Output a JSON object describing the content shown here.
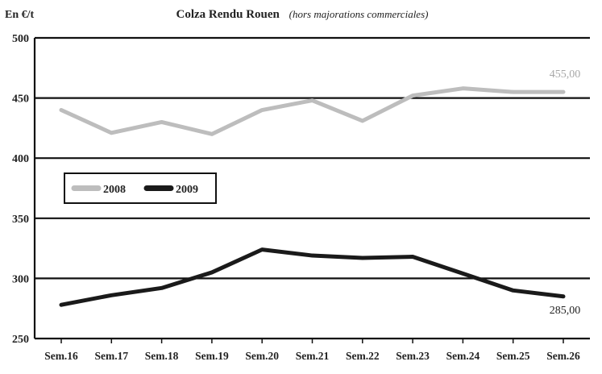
{
  "chart_data": {
    "type": "line",
    "title": "Colza Rendu Rouen",
    "subtitle": "(hors majorations commerciales)",
    "unit_label": "En €/t",
    "categories": [
      "Sem.16",
      "Sem.17",
      "Sem.18",
      "Sem.19",
      "Sem.20",
      "Sem.21",
      "Sem.22",
      "Sem.23",
      "Sem.24",
      "Sem.25",
      "Sem.26"
    ],
    "ylim": [
      250,
      500
    ],
    "yticks": [
      "250",
      "300",
      "350",
      "400",
      "450",
      "500"
    ],
    "grid": true,
    "legend_position": "middle-left",
    "series": [
      {
        "name": "2008",
        "color": "#bdbdbd",
        "values": [
          440,
          421,
          430,
          420,
          440,
          448,
          431,
          452,
          458,
          455,
          455
        ],
        "end_label": "455,00"
      },
      {
        "name": "2009",
        "color": "#1a1a1a",
        "values": [
          278,
          286,
          292,
          305,
          324,
          319,
          317,
          318,
          304,
          290,
          285
        ],
        "end_label": "285,00"
      }
    ]
  }
}
